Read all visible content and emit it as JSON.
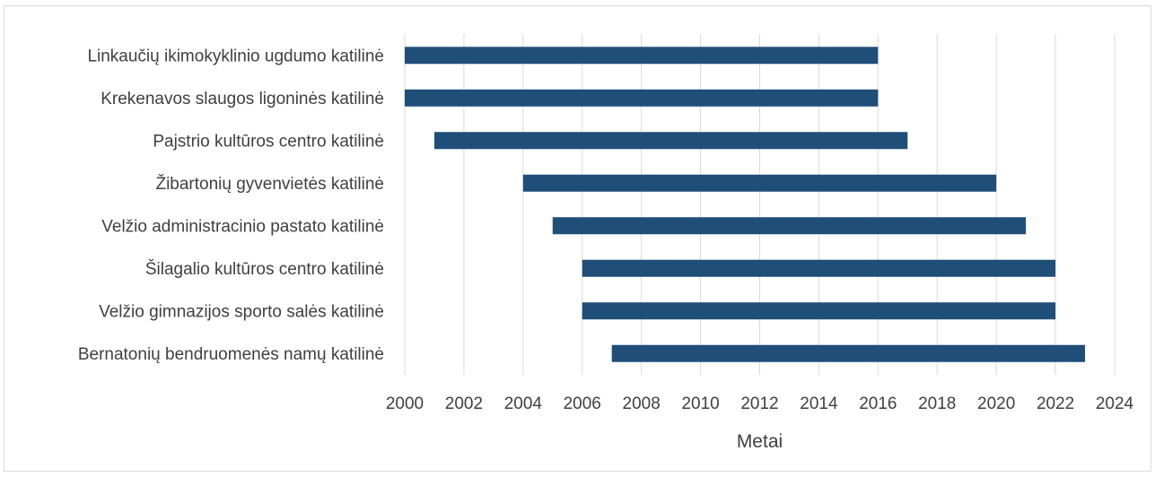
{
  "chart_data": {
    "type": "bar",
    "orientation": "horizontal",
    "subtype": "floating-range",
    "categories": [
      "Linkaučių ikimokyklinio ugdumo katilinė",
      "Krekenavos slaugos ligoninės katilinė",
      "Pajstrio kultūros centro katilinė",
      "Žibartonių gyvenvietės katilinė",
      "Velžio administracinio pastato katilinė",
      "Šilagalio kultūros centro katilinė",
      "Velžio gimnazijos sporto salės katilinė",
      "Bernatonių bendruomenės namų katilinė"
    ],
    "series": [
      {
        "start": [
          2000,
          2000,
          2001,
          2004,
          2005,
          2006,
          2006,
          2007
        ],
        "end": [
          2016,
          2016,
          2017,
          2020,
          2021,
          2022,
          2022,
          2023
        ]
      }
    ],
    "xlim": [
      2000,
      2024
    ],
    "xticks": [
      "2000",
      "2002",
      "2004",
      "2006",
      "2008",
      "2010",
      "2012",
      "2014",
      "2016",
      "2018",
      "2020",
      "2022",
      "2024"
    ],
    "xlabel": "Metai",
    "ylabel": "",
    "title": "",
    "grid": "vertical",
    "legend": "none",
    "bar_color": "#1f4e79",
    "grid_color": "#d9d9d9"
  }
}
